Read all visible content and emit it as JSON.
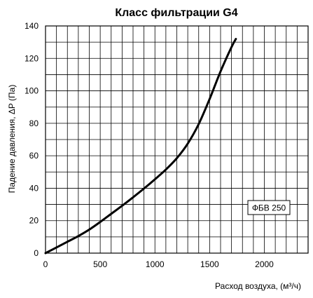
{
  "chart_data": {
    "type": "line",
    "title": "Класс фильтрации G4",
    "xlabel": "Расход воздуха, (м³/ч)",
    "ylabel": "Падение давления, ΔP (Па)",
    "xlim": [
      0,
      2400
    ],
    "ylim": [
      0,
      140
    ],
    "x_ticks": [
      0,
      500,
      1000,
      1500,
      2000
    ],
    "y_ticks": [
      0,
      20,
      40,
      60,
      80,
      100,
      120,
      140
    ],
    "x_grid_step": 100,
    "y_grid_step": 10,
    "grid": true,
    "legend": {
      "placement": "right-middle",
      "entries": [
        "ФБВ 250"
      ]
    },
    "series": [
      {
        "name": "ФБВ 250",
        "x": [
          0,
          100,
          200,
          300,
          400,
          500,
          600,
          700,
          800,
          900,
          1000,
          1100,
          1200,
          1300,
          1400,
          1500,
          1600,
          1700,
          1740
        ],
        "y": [
          0,
          3.5,
          7,
          10.5,
          14.5,
          19.2,
          24.2,
          29.2,
          34.4,
          39.8,
          45.5,
          51.5,
          58.5,
          67.5,
          79.5,
          95,
          112,
          127,
          132
        ]
      }
    ],
    "colors": {
      "line": "#000000",
      "grid": "#000000",
      "axis": "#000000",
      "background": "#ffffff"
    }
  }
}
